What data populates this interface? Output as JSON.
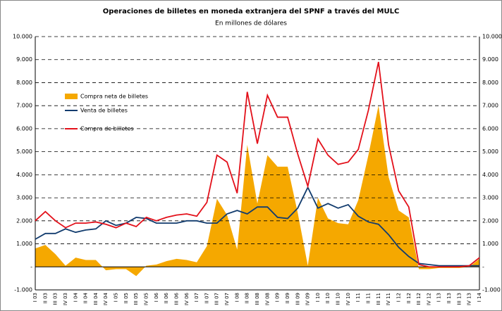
{
  "chart_data": {
    "type": "line",
    "title": "Operaciones de billetes en moneda extranjera del SPNF a través del MULC",
    "subtitle": "En millones de dólares",
    "categories": [
      "I 03",
      "II 03",
      "III 03",
      "IV 03",
      "I 04",
      "II 04",
      "III 04",
      "IV 04",
      "I 05",
      "II 05",
      "III 05",
      "IV 05",
      "I 06",
      "II 06",
      "III 06",
      "IV 06",
      "I 07",
      "II 07",
      "III 07",
      "IV 07",
      "I 08",
      "II 08",
      "III 08",
      "IV 08",
      "I 09",
      "II 09",
      "III 09",
      "IV 09",
      "I 10",
      "II 10",
      "III 10",
      "IV 10",
      "I 11",
      "II 11",
      "III 11",
      "IV 11",
      "I 12",
      "II 12",
      "III 12",
      "IV 12",
      "I 13",
      "II 13",
      "III 13",
      "IV 13",
      "I 14"
    ],
    "series": [
      {
        "name": "Compra neta de billetes",
        "kind": "area",
        "color": "#f5a800",
        "values": [
          800,
          950,
          550,
          50,
          400,
          300,
          300,
          -150,
          -100,
          -100,
          -400,
          50,
          100,
          250,
          350,
          300,
          200,
          900,
          2950,
          2250,
          750,
          5300,
          2750,
          4850,
          4350,
          4350,
          2350,
          50,
          3000,
          2100,
          1900,
          1850,
          2900,
          4850,
          7000,
          3900,
          2450,
          2150,
          -100,
          -100,
          -50,
          -50,
          -50,
          0,
          350
        ]
      },
      {
        "name": "Venta de billetes",
        "kind": "line",
        "color": "#123c6e",
        "values": [
          1200,
          1450,
          1450,
          1650,
          1500,
          1600,
          1650,
          2000,
          1800,
          1900,
          2150,
          2100,
          1900,
          1900,
          1900,
          2000,
          2000,
          1900,
          1900,
          2300,
          2450,
          2300,
          2600,
          2600,
          2150,
          2100,
          2550,
          3450,
          2550,
          2750,
          2550,
          2700,
          2200,
          1950,
          1850,
          1400,
          850,
          450,
          150,
          100,
          50,
          50,
          50,
          50,
          50
        ]
      },
      {
        "name": "Compra de billetes",
        "kind": "line",
        "color": "#e3101a",
        "values": [
          2000,
          2400,
          2000,
          1700,
          1900,
          1900,
          1950,
          1850,
          1700,
          1900,
          1750,
          2150,
          2000,
          2150,
          2250,
          2300,
          2200,
          2800,
          4850,
          4550,
          3200,
          7600,
          5350,
          7450,
          6500,
          6500,
          4900,
          3500,
          5550,
          4850,
          4450,
          4550,
          5100,
          6800,
          8900,
          5300,
          3300,
          2600,
          100,
          0,
          0,
          0,
          0,
          50,
          400
        ]
      }
    ],
    "ylim": [
      -1000,
      10000
    ],
    "yticks": [
      {
        "value": -1000,
        "label": "-1.000"
      },
      {
        "value": 0,
        "label": "-"
      },
      {
        "value": 1000,
        "label": "1.000"
      },
      {
        "value": 2000,
        "label": "2.000"
      },
      {
        "value": 3000,
        "label": "3.000"
      },
      {
        "value": 4000,
        "label": "4.000"
      },
      {
        "value": 5000,
        "label": "5.000"
      },
      {
        "value": 6000,
        "label": "6.000"
      },
      {
        "value": 7000,
        "label": "7.000"
      },
      {
        "value": 8000,
        "label": "8.000"
      },
      {
        "value": 9000,
        "label": "9.000"
      },
      {
        "value": 10000,
        "label": "10.000"
      }
    ],
    "grid": true
  }
}
